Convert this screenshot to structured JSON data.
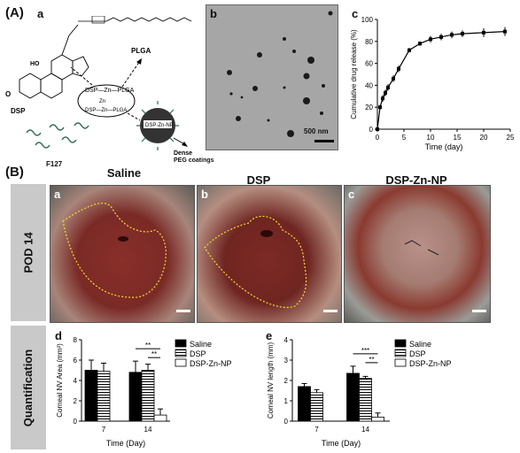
{
  "panel_A": {
    "label": "(A)",
    "sub_a": "a",
    "sub_b": "b",
    "sub_c": "c",
    "scheme": {
      "dsp": "DSP",
      "plga": "PLGA",
      "f127": "F127",
      "np": "DSP-Zn-NP",
      "dense": "Dense",
      "peg": "PEG coatings",
      "dsp_plga": "DSP—Zn—PLGA",
      "zn": "Zn",
      "dsp_bottom": "DSP—Zn—PLGA",
      "dsp_left": "DSP",
      "ho": "HO",
      "o": "O"
    },
    "scalebar": "500 nm"
  },
  "panel_B": {
    "label": "(B)",
    "side_top": "POD 14",
    "side_bottom": "Quantification",
    "titles": [
      "Saline",
      "DSP",
      "DSP-Zn-NP"
    ],
    "photo_labels": [
      "a",
      "b",
      "c"
    ],
    "sub_d": "d",
    "sub_e": "e"
  },
  "chart_data": [
    {
      "type": "line",
      "panel": "c",
      "xlabel": "Time (day)",
      "ylabel": "Cumulative drug release (%)",
      "xlim": [
        0,
        25
      ],
      "ylim": [
        0,
        100
      ],
      "xticks": [
        0,
        5,
        10,
        15,
        20,
        25
      ],
      "yticks": [
        0,
        20,
        40,
        60,
        80,
        100
      ],
      "x": [
        0,
        0.5,
        1,
        1.5,
        2,
        3,
        4,
        6,
        8,
        10,
        12,
        14,
        16,
        20,
        24
      ],
      "y": [
        0,
        20,
        28,
        33,
        38,
        46,
        55,
        72,
        78,
        82,
        84,
        86,
        87,
        88,
        89
      ],
      "err": [
        0,
        2,
        3,
        3,
        3,
        3,
        3,
        2,
        2,
        3,
        3,
        3,
        3,
        4,
        4
      ]
    },
    {
      "type": "bar",
      "panel": "d",
      "xlabel": "Time (Day)",
      "ylabel": "Corneal NV Area (mm²)",
      "ylim": [
        0,
        8
      ],
      "yticks": [
        0,
        2,
        4,
        6,
        8
      ],
      "categories": [
        "7",
        "14"
      ],
      "series": [
        {
          "name": "Saline",
          "values": [
            5.0,
            4.8
          ],
          "err": [
            1.0,
            1.1
          ]
        },
        {
          "name": "DSP",
          "values": [
            4.9,
            5.0
          ],
          "err": [
            0.8,
            0.6
          ]
        },
        {
          "name": "DSP-Zn-NP",
          "values": [
            null,
            0.6
          ],
          "err": [
            0,
            0.6
          ]
        }
      ],
      "significance": [
        "**",
        "**"
      ]
    },
    {
      "type": "bar",
      "panel": "e",
      "xlabel": "Time (Day)",
      "ylabel": "Corneal NV length (mm)",
      "ylim": [
        0,
        4
      ],
      "yticks": [
        0,
        1,
        2,
        3,
        4
      ],
      "categories": [
        "7",
        "14"
      ],
      "series": [
        {
          "name": "Saline",
          "values": [
            1.7,
            2.35
          ],
          "err": [
            0.15,
            0.35
          ]
        },
        {
          "name": "DSP",
          "values": [
            1.4,
            2.1
          ],
          "err": [
            0.15,
            0.1
          ]
        },
        {
          "name": "DSP-Zn-NP",
          "values": [
            null,
            0.2
          ],
          "err": [
            0,
            0.2
          ]
        }
      ],
      "significance": [
        "***",
        "**"
      ]
    }
  ]
}
